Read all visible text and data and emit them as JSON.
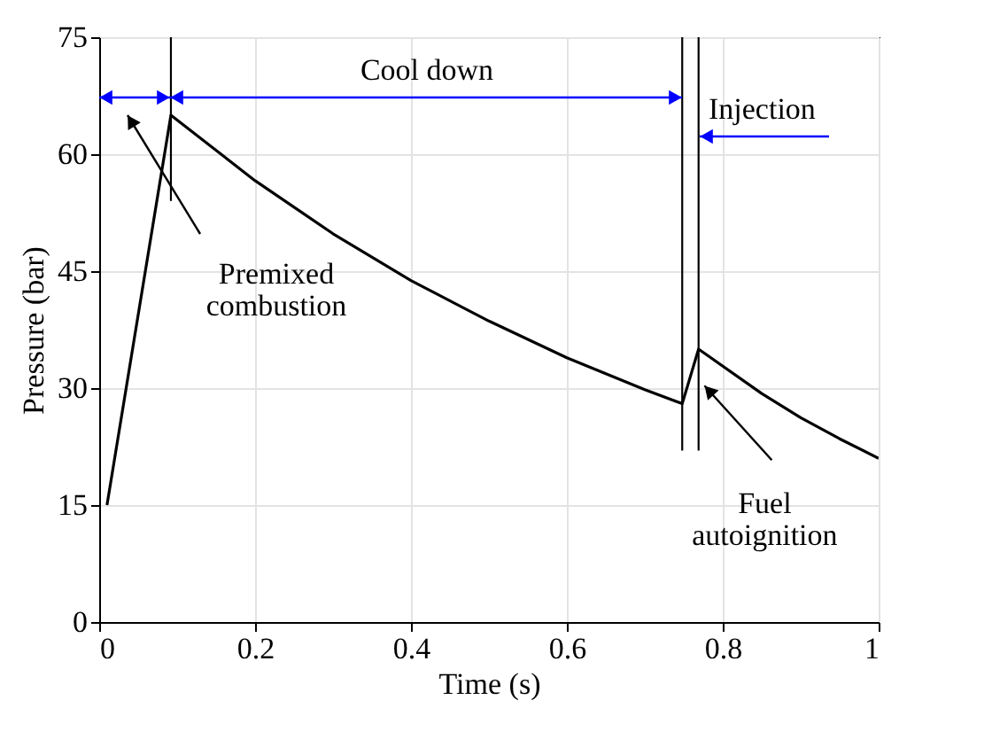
{
  "chart_data": {
    "type": "line",
    "xlabel": "Time (s)",
    "ylabel": "Pressure (bar)",
    "xlim": [
      0,
      1
    ],
    "xticks": [
      0,
      0.2,
      0.4,
      0.6,
      0.8,
      1
    ],
    "ylim": [
      0,
      75
    ],
    "yticks": [
      0,
      15,
      30,
      45,
      60,
      75
    ],
    "grid": true,
    "series": [
      {
        "color": "#000000",
        "x": [
          0.01,
          0.092,
          0.2,
          0.3,
          0.4,
          0.5,
          0.6,
          0.7,
          0.748,
          0.769,
          0.85,
          0.9,
          0.95,
          1.0
        ],
        "values": [
          15,
          65,
          56.6,
          49.8,
          43.8,
          38.6,
          33.9,
          29.8,
          28,
          35,
          29.3,
          26.2,
          23.5,
          21
        ]
      },
      {
        "color": "#000000",
        "x": [
          0.092,
          0.092
        ],
        "values": [
          54,
          75
        ]
      },
      {
        "color": "#000000",
        "x": [
          0.748,
          0.748
        ],
        "values": [
          22,
          75
        ]
      },
      {
        "color": "#000000",
        "x": [
          0.769,
          0.769
        ],
        "values": [
          22,
          75
        ]
      }
    ],
    "annotations": [
      "Cool down",
      "Injection",
      "Premixed combustion",
      {
        "text": "Fuel autoignition",
        "x": 0.772,
        "y": 31
      }
    ]
  }
}
